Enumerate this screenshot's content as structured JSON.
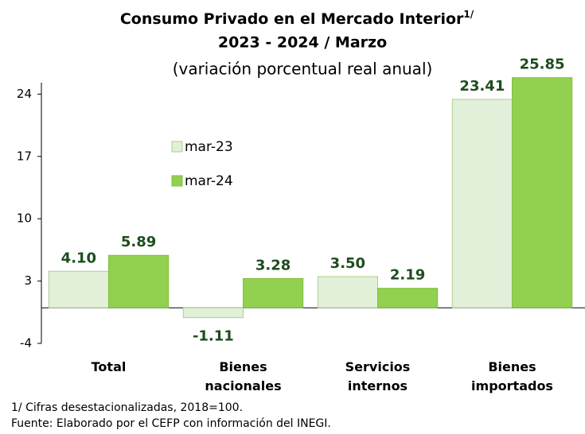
{
  "chart_data": {
    "type": "bar",
    "title": "Consumo Privado en el Mercado Interior",
    "title_note": "1/",
    "subtitle_1": "2023 - 2024 / Marzo",
    "subtitle_2": "(variación porcentual real anual)",
    "categories": [
      "Total",
      "Bienes nacionales",
      "Servicios internos",
      "Bienes importados"
    ],
    "series": [
      {
        "name": "mar-23",
        "color": "#e2f0d9",
        "values": [
          4.1,
          -1.11,
          3.5,
          23.41
        ],
        "value_labels": [
          "4.10",
          "-1.11",
          "3.50",
          "23.41"
        ]
      },
      {
        "name": "mar-24",
        "color": "#92d050",
        "values": [
          5.89,
          3.28,
          2.19,
          25.85
        ],
        "value_labels": [
          "5.89",
          "3.28",
          "2.19",
          "25.85"
        ]
      }
    ],
    "ylim": [
      -4,
      26
    ],
    "yticks": [
      -4,
      3,
      10,
      17,
      24
    ],
    "legend": "upper-left",
    "notes": [
      "1/ Cifras desestacionalizadas, 2018=100.",
      "Fuente: Elaborado por el CEFP con información del INEGI."
    ]
  }
}
